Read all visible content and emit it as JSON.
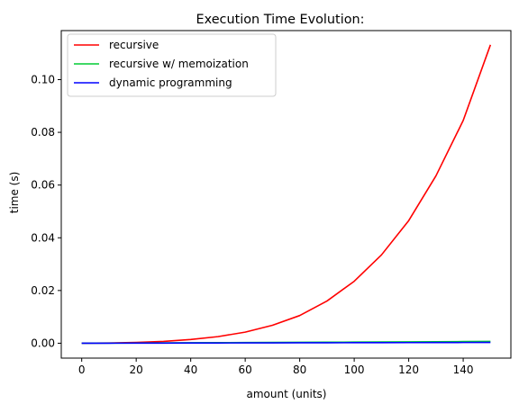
{
  "chart_data": {
    "type": "line",
    "title": "Execution Time Evolution:",
    "xlabel": "amount (units)",
    "ylabel": "time (s)",
    "xlim": [
      -7.5,
      157.5
    ],
    "ylim": [
      -0.00565,
      0.1186
    ],
    "xticks": [
      0,
      20,
      40,
      60,
      80,
      100,
      120,
      140
    ],
    "yticks": [
      0.0,
      0.02,
      0.04,
      0.06,
      0.08,
      0.1
    ],
    "ytick_labels": [
      "0.00",
      "0.02",
      "0.04",
      "0.06",
      "0.08",
      "0.10"
    ],
    "grid": false,
    "legend": "upper left",
    "x": [
      0,
      10,
      20,
      30,
      40,
      50,
      60,
      70,
      80,
      90,
      100,
      110,
      120,
      130,
      140,
      150
    ],
    "series": [
      {
        "name": "recursive",
        "color": "#ff0000",
        "values": [
          0.0,
          0.0001,
          0.0003,
          0.0007,
          0.0014,
          0.0025,
          0.0042,
          0.0068,
          0.0105,
          0.016,
          0.0235,
          0.0335,
          0.0465,
          0.0635,
          0.0845,
          0.1132
        ]
      },
      {
        "name": "recursive w/ memoization",
        "color": "#00cc33",
        "values": [
          0.0,
          4e-05,
          8e-05,
          0.00012,
          0.00016,
          0.0002,
          0.00025,
          0.0003,
          0.00034,
          0.00038,
          0.00043,
          0.00048,
          0.00053,
          0.00058,
          0.00063,
          0.0007
        ]
      },
      {
        "name": "dynamic programming",
        "color": "#0000ff",
        "values": [
          0.0,
          2e-05,
          4e-05,
          6e-05,
          8e-05,
          0.0001,
          0.00012,
          0.00014,
          0.00016,
          0.00018,
          0.0002,
          0.00022,
          0.00024,
          0.00026,
          0.00028,
          0.0003
        ]
      }
    ]
  }
}
